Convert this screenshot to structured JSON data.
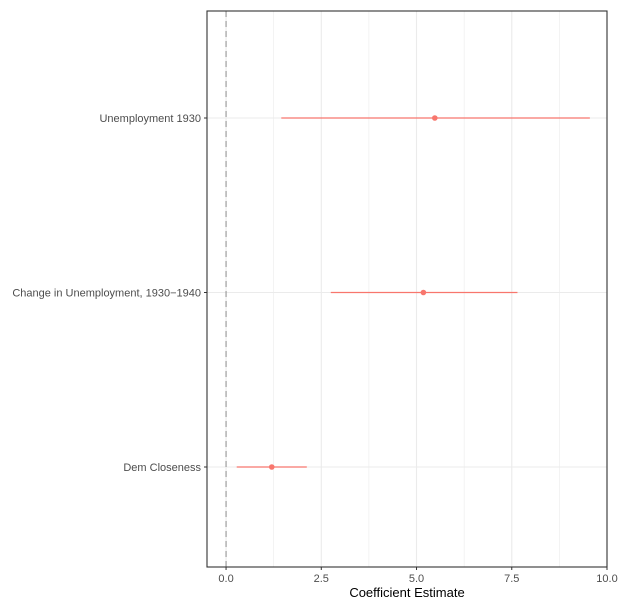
{
  "chart_data": {
    "type": "coefficient-plot",
    "xlabel": "Coefficient Estimate",
    "ylabel": "",
    "xlim": [
      -0.5,
      10.0
    ],
    "x_ticks": [
      0.0,
      2.5,
      5.0,
      7.5,
      10.0
    ],
    "x_tick_labels": [
      "0.0",
      "2.5",
      "5.0",
      "7.5",
      "10.0"
    ],
    "reference_line": 0,
    "grid": true,
    "legend": "none",
    "categories": [
      "Unemployment 1930",
      "Change in Unemployment, 1930−1940",
      "Dem Closeness"
    ],
    "estimates": [
      5.48,
      5.18,
      1.2
    ],
    "ci_low": [
      1.45,
      2.75,
      0.28
    ],
    "ci_high": [
      9.55,
      7.65,
      2.12
    ],
    "colors": {
      "mark": "#f8766d",
      "grid": "#ebebeb",
      "reference": "#8c8c8c",
      "panel_border": "#333333"
    }
  }
}
